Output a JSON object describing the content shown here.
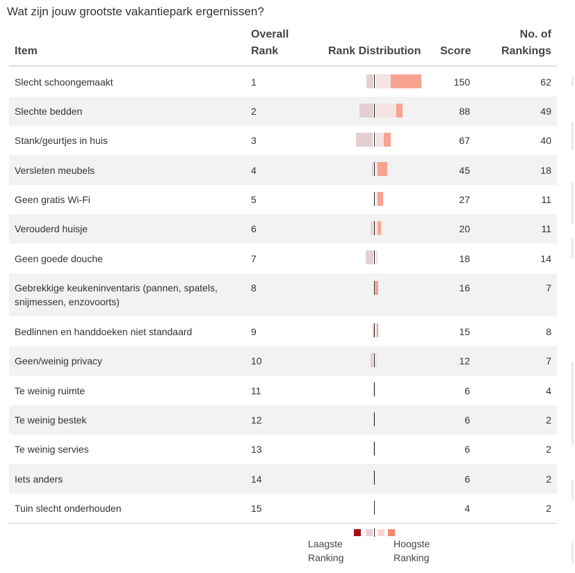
{
  "title": "Wat zijn jouw grootste vakantiepark ergernissen?",
  "headers": {
    "item": "Item",
    "overall_rank_line1": "Overall",
    "overall_rank_line2": "Rank",
    "distribution": "Rank Distribution",
    "score": "Score",
    "rankings_line1": "No. of",
    "rankings_line2": "Rankings"
  },
  "colors": {
    "lowest": "#a50f15",
    "low": "#e6cfd2",
    "mid": "#f3e3e3",
    "high": "#fbd5cb",
    "highest": "#f4876a",
    "strong": "#f7a38f",
    "median_line": "#222222"
  },
  "rows": [
    {
      "item": "Slecht schoongemaakt",
      "rank": "1",
      "score": "150",
      "count": "62"
    },
    {
      "item": "Slechte bedden",
      "rank": "2",
      "score": "88",
      "count": "49"
    },
    {
      "item": "Stank/geurtjes in huis",
      "rank": "3",
      "score": "67",
      "count": "40"
    },
    {
      "item": "Versleten meubels",
      "rank": "4",
      "score": "45",
      "count": "18"
    },
    {
      "item": "Geen gratis Wi-Fi",
      "rank": "5",
      "score": "27",
      "count": "11"
    },
    {
      "item": "Verouderd huisje",
      "rank": "6",
      "score": "20",
      "count": "11"
    },
    {
      "item": "Geen goede douche",
      "rank": "7",
      "score": "18",
      "count": "14"
    },
    {
      "item": "Gebrekkige keukeninventaris (pannen, spatels, snijmessen, enzovoorts)",
      "rank": "8",
      "score": "16",
      "count": "7"
    },
    {
      "item": "Bedlinnen en handdoeken niet standaard",
      "rank": "9",
      "score": "15",
      "count": "8"
    },
    {
      "item": "Geen/weinig privacy",
      "rank": "10",
      "score": "12",
      "count": "7"
    },
    {
      "item": "Te weinig ruimte",
      "rank": "11",
      "score": "6",
      "count": "4"
    },
    {
      "item": "Te weinig bestek",
      "rank": "12",
      "score": "6",
      "count": "2"
    },
    {
      "item": "Te weinig servies",
      "rank": "13",
      "score": "6",
      "count": "2"
    },
    {
      "item": "Iets anders",
      "rank": "14",
      "score": "6",
      "count": "2"
    },
    {
      "item": "Tuin slecht onderhouden",
      "rank": "15",
      "score": "4",
      "count": "2"
    }
  ],
  "legend": {
    "low_line1": "Laagste",
    "low_line2": "Ranking",
    "high_line1": "Hoogste",
    "high_line2": "Ranking"
  }
}
